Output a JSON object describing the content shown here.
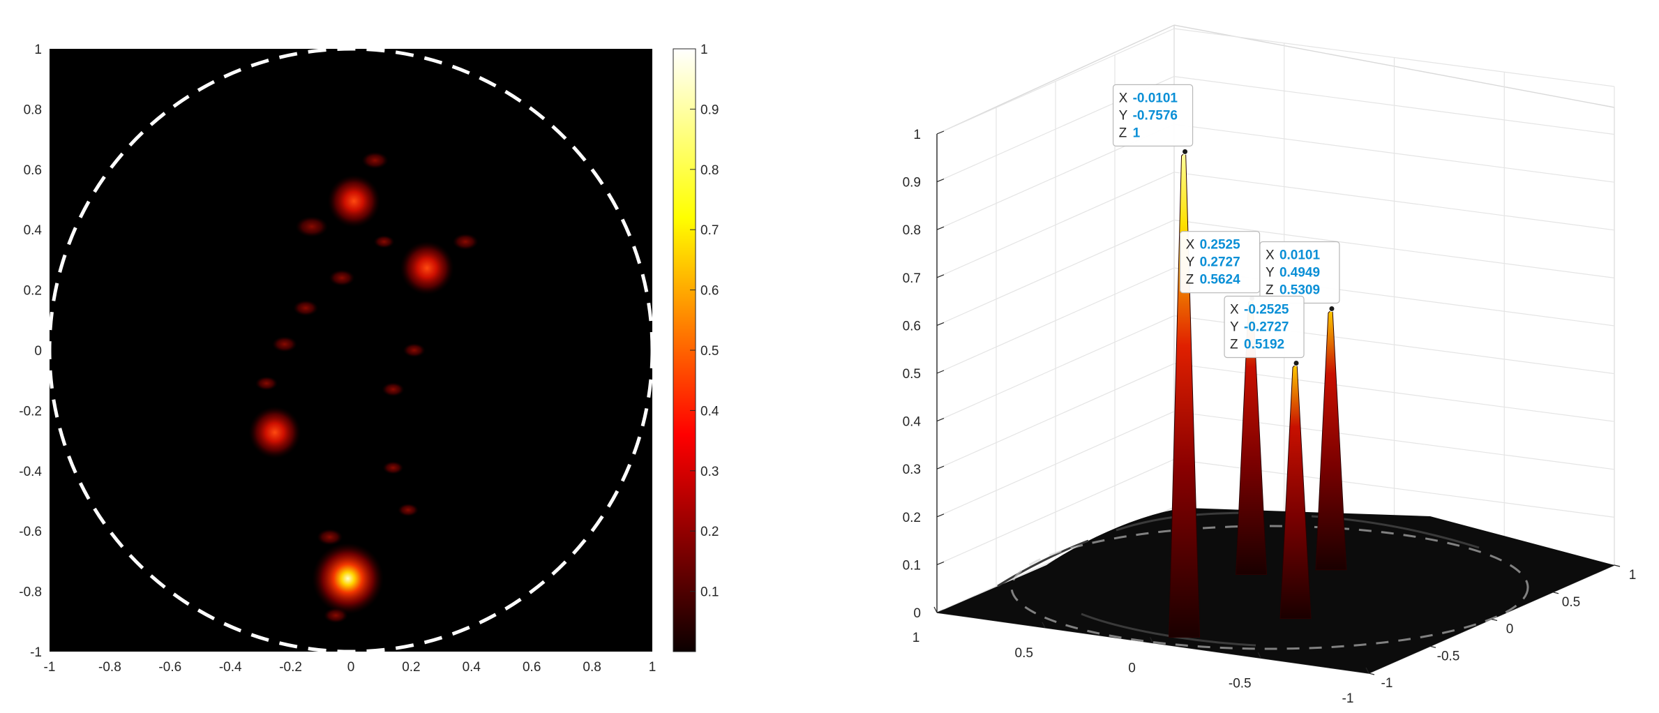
{
  "chart_data": [
    {
      "type": "heatmap",
      "title": "",
      "xlabel": "",
      "ylabel": "",
      "xlim": [
        -1,
        1
      ],
      "ylim": [
        -1,
        1
      ],
      "x_ticks": [
        "-1",
        "-0.8",
        "-0.6",
        "-0.4",
        "-0.2",
        "0",
        "0.2",
        "0.4",
        "0.6",
        "0.8",
        "1"
      ],
      "y_ticks": [
        "-1",
        "-0.8",
        "-0.6",
        "-0.4",
        "-0.2",
        "0",
        "0.2",
        "0.4",
        "0.6",
        "0.8",
        "1"
      ],
      "colormap": "hot",
      "colors": {
        "background": "#000000",
        "circle": "#ffffff"
      },
      "colorbar": {
        "ticks": [
          "0.1",
          "0.2",
          "0.3",
          "0.4",
          "0.5",
          "0.6",
          "0.7",
          "0.8",
          "0.9",
          "1"
        ],
        "range": [
          0,
          1
        ]
      },
      "circle": {
        "center": [
          0,
          0
        ],
        "radius": 1,
        "style": "dashed"
      },
      "peaks": [
        {
          "x": -0.0101,
          "y": -0.7576,
          "z": 1.0
        },
        {
          "x": 0.2525,
          "y": 0.2727,
          "z": 0.5624
        },
        {
          "x": 0.0101,
          "y": 0.4949,
          "z": 0.5309
        },
        {
          "x": -0.2525,
          "y": -0.2727,
          "z": 0.5192
        }
      ],
      "sidelobes": [
        {
          "x": 0.08,
          "y": 0.63,
          "z": 0.15
        },
        {
          "x": -0.13,
          "y": 0.41,
          "z": 0.22
        },
        {
          "x": 0.38,
          "y": 0.36,
          "z": 0.14
        },
        {
          "x": -0.03,
          "y": 0.24,
          "z": 0.14
        },
        {
          "x": -0.15,
          "y": 0.14,
          "z": 0.13
        },
        {
          "x": -0.22,
          "y": 0.02,
          "z": 0.13
        },
        {
          "x": 0.21,
          "y": 0.0,
          "z": 0.1
        },
        {
          "x": -0.28,
          "y": -0.11,
          "z": 0.1
        },
        {
          "x": 0.14,
          "y": -0.13,
          "z": 0.1
        },
        {
          "x": 0.14,
          "y": -0.39,
          "z": 0.08
        },
        {
          "x": 0.19,
          "y": -0.53,
          "z": 0.08
        },
        {
          "x": -0.07,
          "y": -0.62,
          "z": 0.14
        },
        {
          "x": -0.05,
          "y": -0.88,
          "z": 0.12
        },
        {
          "x": 0.11,
          "y": 0.36,
          "z": 0.08
        }
      ]
    },
    {
      "type": "surface",
      "title": "",
      "xlim": [
        -1,
        1
      ],
      "ylim": [
        -1,
        1
      ],
      "zlim": [
        0,
        1
      ],
      "x_ticks": [
        "1",
        "0.5",
        "0",
        "-0.5",
        "-1"
      ],
      "y_ticks": [
        "1",
        "0.5",
        "0",
        "-0.5",
        "-1"
      ],
      "z_ticks": [
        "0",
        "0.1",
        "0.2",
        "0.3",
        "0.4",
        "0.5",
        "0.6",
        "0.7",
        "0.8",
        "0.9",
        "1"
      ],
      "grid": true,
      "datatips": [
        {
          "X": "0.0101",
          "Y": "0.4949",
          "Z": "0.5309"
        },
        {
          "X": "0.2525",
          "Y": "0.2727",
          "Z": "0.5624"
        },
        {
          "X": "-0.2525",
          "Y": "-0.2727",
          "Z": "0.5192"
        },
        {
          "X": "-0.0101",
          "Y": "-0.7576",
          "Z": "1"
        }
      ],
      "datatip_keys": {
        "x": "X",
        "y": "Y",
        "z": "Z"
      }
    }
  ]
}
